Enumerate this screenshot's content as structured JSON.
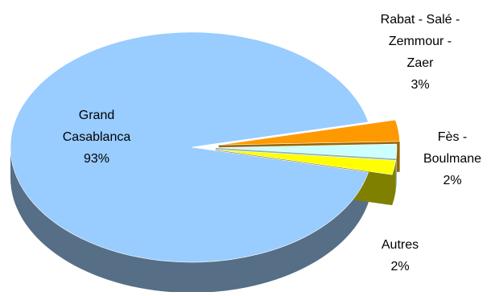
{
  "chart_data": {
    "type": "pie",
    "style": "3d-exploded",
    "grid": false,
    "legend": "none",
    "slices": [
      {
        "label_lines": [
          "Grand",
          "Casablanca"
        ],
        "value_label": "93%",
        "value": 93,
        "color": "#99CCFF",
        "side_color": "#566E86"
      },
      {
        "label_lines": [
          "Rabat - Salé -",
          "Zemmour -",
          "Zaer"
        ],
        "value_label": "3%",
        "value": 3,
        "color": "#FF9900",
        "side_color": "#996600"
      },
      {
        "label_lines": [
          "Fès -",
          "Boulmane"
        ],
        "value_label": "2%",
        "value": 2,
        "color": "#CCFFFF",
        "side_color": "#8FB3B3"
      },
      {
        "label_lines": [
          "Autres"
        ],
        "value_label": "2%",
        "value": 2,
        "color": "#FFFF00",
        "side_color": "#808000"
      }
    ]
  }
}
